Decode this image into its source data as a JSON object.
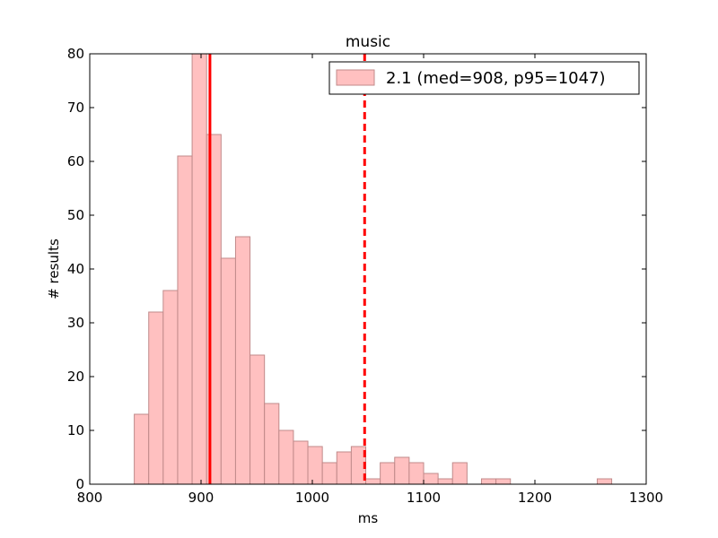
{
  "chart_data": {
    "type": "bar",
    "title": "music",
    "xlabel": "ms",
    "ylabel": "# results",
    "xlim": [
      800,
      1300
    ],
    "ylim": [
      0,
      80
    ],
    "xticks": [
      800,
      900,
      1000,
      1100,
      1200,
      1300
    ],
    "yticks": [
      0,
      10,
      20,
      30,
      40,
      50,
      60,
      70,
      80
    ],
    "grid": false,
    "legend_position": "top-right",
    "bin_width": 13,
    "series": [
      {
        "name": "2.1 (med=908, p95=1047)",
        "color": "#ffc0c0",
        "edge_color": "#c08a8a",
        "bins": [
          {
            "x0": 840,
            "x1": 853,
            "count": 13
          },
          {
            "x0": 853,
            "x1": 866,
            "count": 32
          },
          {
            "x0": 866,
            "x1": 879,
            "count": 36
          },
          {
            "x0": 879,
            "x1": 892,
            "count": 61
          },
          {
            "x0": 892,
            "x1": 905,
            "count": 80
          },
          {
            "x0": 905,
            "x1": 918,
            "count": 65
          },
          {
            "x0": 918,
            "x1": 931,
            "count": 42
          },
          {
            "x0": 931,
            "x1": 944,
            "count": 46
          },
          {
            "x0": 944,
            "x1": 957,
            "count": 24
          },
          {
            "x0": 957,
            "x1": 970,
            "count": 15
          },
          {
            "x0": 970,
            "x1": 983,
            "count": 10
          },
          {
            "x0": 983,
            "x1": 996,
            "count": 8
          },
          {
            "x0": 996,
            "x1": 1009,
            "count": 7
          },
          {
            "x0": 1009,
            "x1": 1022,
            "count": 4
          },
          {
            "x0": 1022,
            "x1": 1035,
            "count": 6
          },
          {
            "x0": 1035,
            "x1": 1048,
            "count": 7
          },
          {
            "x0": 1048,
            "x1": 1061,
            "count": 1
          },
          {
            "x0": 1061,
            "x1": 1074,
            "count": 4
          },
          {
            "x0": 1074,
            "x1": 1087,
            "count": 5
          },
          {
            "x0": 1087,
            "x1": 1100,
            "count": 4
          },
          {
            "x0": 1100,
            "x1": 1113,
            "count": 2
          },
          {
            "x0": 1113,
            "x1": 1126,
            "count": 1
          },
          {
            "x0": 1126,
            "x1": 1139,
            "count": 4
          },
          {
            "x0": 1139,
            "x1": 1152,
            "count": 0
          },
          {
            "x0": 1152,
            "x1": 1165,
            "count": 1
          },
          {
            "x0": 1165,
            "x1": 1178,
            "count": 1
          },
          {
            "x0": 1178,
            "x1": 1191,
            "count": 0
          },
          {
            "x0": 1191,
            "x1": 1204,
            "count": 0
          },
          {
            "x0": 1204,
            "x1": 1217,
            "count": 0
          },
          {
            "x0": 1217,
            "x1": 1230,
            "count": 0
          },
          {
            "x0": 1230,
            "x1": 1243,
            "count": 0
          },
          {
            "x0": 1243,
            "x1": 1256,
            "count": 0
          },
          {
            "x0": 1256,
            "x1": 1269,
            "count": 1
          }
        ]
      }
    ],
    "reference_lines": [
      {
        "label": "median",
        "x": 908,
        "color": "#ff0000",
        "style": "solid"
      },
      {
        "label": "p95",
        "x": 1047,
        "color": "#ff0000",
        "style": "dashed"
      }
    ]
  }
}
